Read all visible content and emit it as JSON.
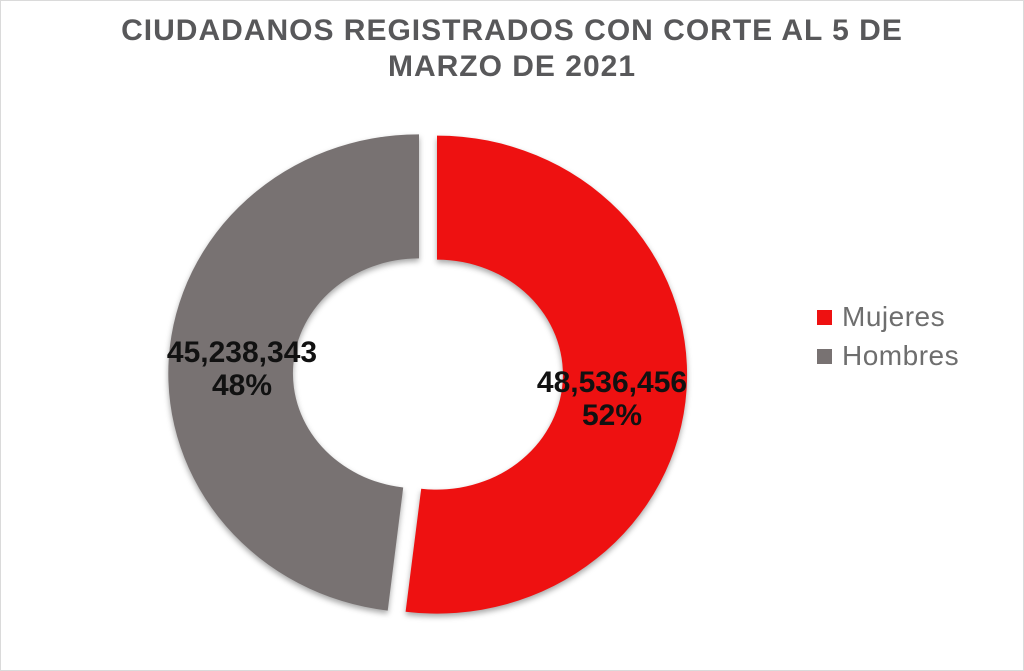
{
  "header": {
    "title_line1": "CIUDADANOS REGISTRADOS CON CORTE AL 5 DE",
    "title_line2": "MARZO DE 2021"
  },
  "chart_data": {
    "type": "pie",
    "subtype": "donut",
    "title": "CIUDADANOS REGISTRADOS CON CORTE AL 5 DE MARZO DE 2021",
    "legend_position": "right",
    "start_angle_deg": 0,
    "direction": "clockwise",
    "slices": [
      {
        "name": "Mujeres",
        "value": 48536456,
        "percent": 52,
        "color": "#ee1111",
        "label_value": "48,536,456",
        "label_percent": "52%"
      },
      {
        "name": "Hombres",
        "value": 45238343,
        "percent": 48,
        "color": "#787272",
        "label_value": "45,238,343",
        "label_percent": "48%"
      }
    ]
  },
  "legend": {
    "items": [
      {
        "label": "Mujeres",
        "color": "#ee1111"
      },
      {
        "label": "Hombres",
        "color": "#787272"
      }
    ]
  }
}
